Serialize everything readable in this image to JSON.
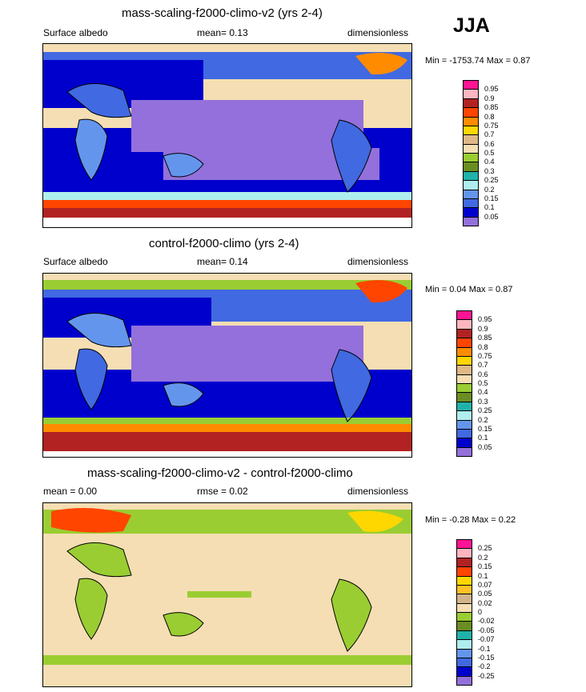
{
  "season": "JJA",
  "panels": [
    {
      "title": "mass-scaling-f2000-climo-v2 (yrs 2-4)",
      "left": "Surface albedo",
      "center": "mean=  0.13",
      "right": "dimensionless",
      "minmax": "Min = -1753.74 Max =   0.87",
      "levels": [
        "0.95",
        "0.9",
        "0.85",
        "0.8",
        "0.75",
        "0.7",
        "0.6",
        "0.5",
        "0.4",
        "0.3",
        "0.25",
        "0.2",
        "0.15",
        "0.1",
        "0.05"
      ],
      "colors": [
        "#ff1493",
        "#ffb6c1",
        "#b22222",
        "#ff4500",
        "#ff8c00",
        "#ffd700",
        "#deb887",
        "#f5deb3",
        "#9acd32",
        "#6b8e23",
        "#20b2aa",
        "#afeeee",
        "#6495ed",
        "#4169e1",
        "#0000cd",
        "#9370db"
      ]
    },
    {
      "title": "control-f2000-climo (yrs 2-4)",
      "left": "Surface albedo",
      "center": "mean=  0.14",
      "right": "dimensionless",
      "minmax": "Min =  0.04 Max =   0.87",
      "levels": [
        "0.95",
        "0.9",
        "0.85",
        "0.8",
        "0.75",
        "0.7",
        "0.6",
        "0.5",
        "0.4",
        "0.3",
        "0.25",
        "0.2",
        "0.15",
        "0.1",
        "0.05"
      ],
      "colors": [
        "#ff1493",
        "#ffb6c1",
        "#b22222",
        "#ff4500",
        "#ff8c00",
        "#ffd700",
        "#deb887",
        "#f5deb3",
        "#9acd32",
        "#6b8e23",
        "#20b2aa",
        "#afeeee",
        "#6495ed",
        "#4169e1",
        "#0000cd",
        "#9370db"
      ]
    },
    {
      "title": "mass-scaling-f2000-climo-v2 - control-f2000-climo",
      "left": "mean =   0.00",
      "center": "rmse =   0.02",
      "right": "dimensionless",
      "minmax": "Min = -0.28 Max =   0.22",
      "levels": [
        "0.25",
        "0.2",
        "0.15",
        "0.1",
        "0.07",
        "0.05",
        "0.02",
        "0",
        "-0.02",
        "-0.05",
        "-0.07",
        "-0.1",
        "-0.15",
        "-0.2",
        "-0.25"
      ],
      "colors": [
        "#ff1493",
        "#ffb6c1",
        "#b22222",
        "#ff4500",
        "#ffd700",
        "#ffc125",
        "#d2b48c",
        "#f5deb3",
        "#9acd32",
        "#6b8e23",
        "#20b2aa",
        "#afeeee",
        "#6495ed",
        "#4169e1",
        "#0000cd",
        "#9370db"
      ]
    }
  ]
}
